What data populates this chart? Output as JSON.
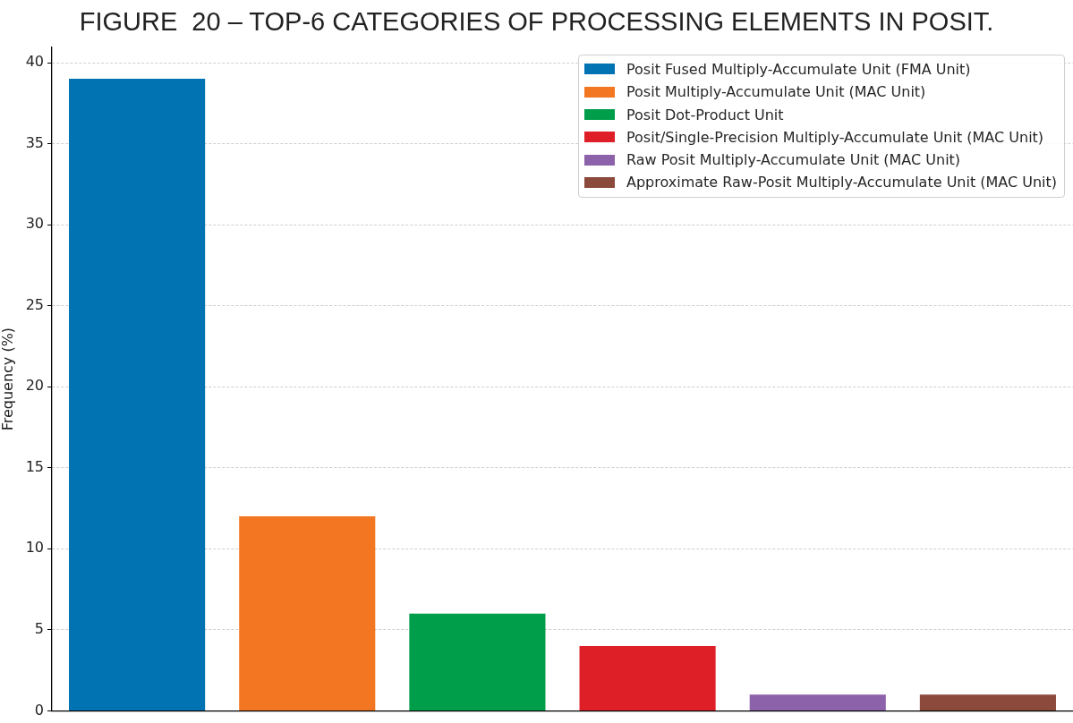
{
  "chart_data": {
    "type": "bar",
    "title": "FIGURE  20 – TOP-6 CATEGORIES OF PROCESSING ELEMENTS IN POSIT.",
    "ylabel": "Frequency (%)",
    "categories": [
      null,
      null,
      null,
      null,
      null,
      null
    ],
    "series": [
      {
        "name": "Posit Fused Multiply-Accumulate Unit (FMA Unit)",
        "color": "#0173b2",
        "values": [
          39,
          null,
          null,
          null,
          null,
          null
        ]
      },
      {
        "name": "Posit Multiply-Accumulate Unit (MAC Unit)",
        "color": "#f37722",
        "values": [
          null,
          12,
          null,
          null,
          null,
          null
        ]
      },
      {
        "name": "Posit Dot-Product Unit",
        "color": "#009e4a",
        "values": [
          null,
          null,
          6,
          null,
          null,
          null
        ]
      },
      {
        "name": "Posit/Single-Precision Multiply-Accumulate Unit (MAC Unit)",
        "color": "#de1f27",
        "values": [
          null,
          null,
          null,
          4,
          null,
          null
        ]
      },
      {
        "name": "Raw Posit Multiply-Accumulate Unit (MAC Unit)",
        "color": "#8c62aa",
        "values": [
          null,
          null,
          null,
          null,
          1,
          null
        ]
      },
      {
        "name": "Approximate Raw-Posit Multiply-Accumulate Unit (MAC Unit)",
        "color": "#8b4a3c",
        "values": [
          null,
          null,
          null,
          null,
          null,
          1
        ]
      }
    ],
    "ylim": [
      0,
      40.95
    ],
    "yticks": [
      0,
      5,
      10,
      15,
      20,
      25,
      30,
      35,
      40
    ],
    "grid": "y",
    "legend": "top right"
  }
}
